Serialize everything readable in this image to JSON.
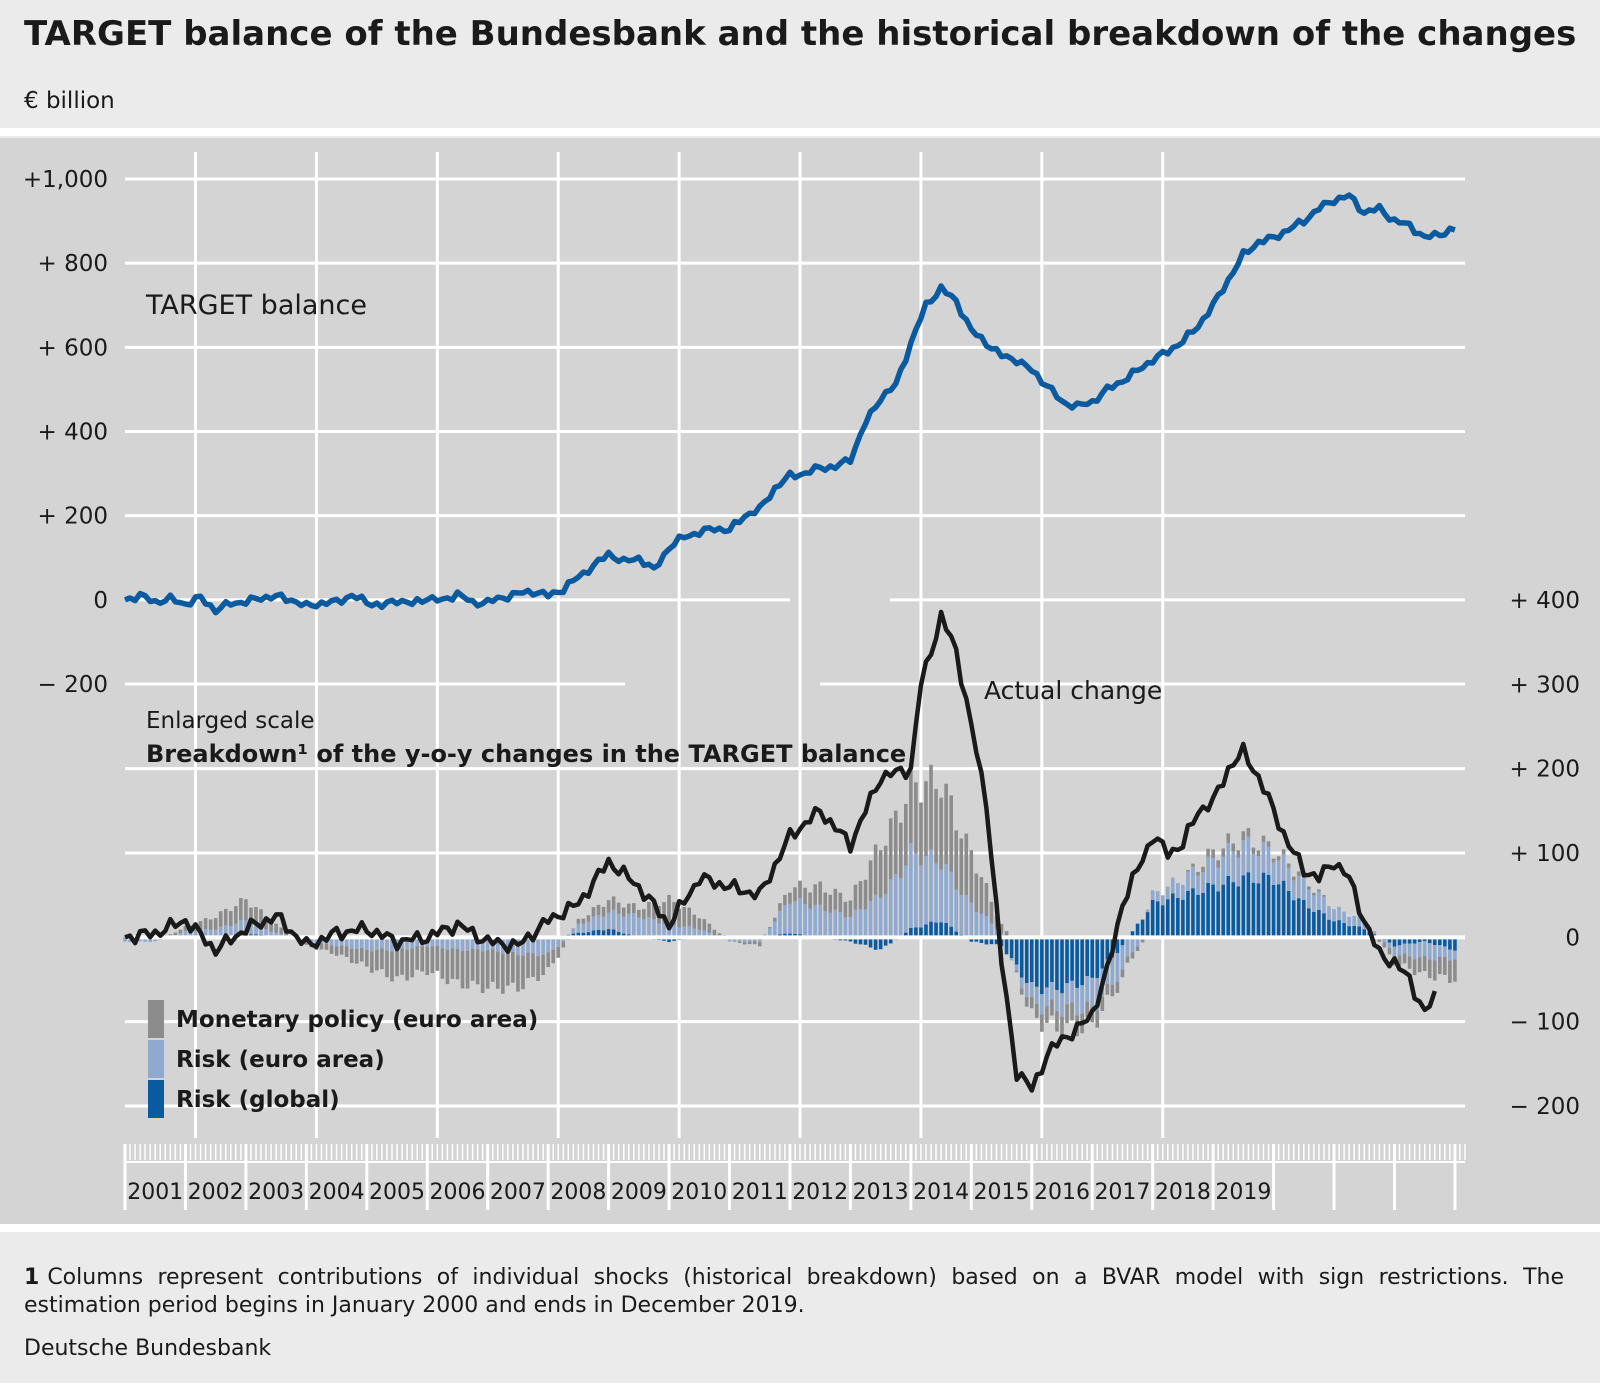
{
  "header": {
    "title": "TARGET balance of the Bundesbank and the historical breakdown of the changes",
    "unit": "€ billion"
  },
  "footer": {
    "note_number": "1",
    "note_text": "Columns represent contributions of individual shocks (historical breakdown) based on a BVAR model with sign restrictions. The estimation period begins in January 2000 and ends in December 2019.",
    "source": "Deutsche Bundesbank"
  },
  "chart_data": [
    {
      "type": "line",
      "panel": "top",
      "title": "TARGET balance",
      "ylim": [
        -200,
        1000
      ],
      "yticks": [
        "+1,000",
        "+ 800",
        "+ 600",
        "+ 400",
        "+ 200",
        "0",
        "− 200"
      ],
      "color": "#0a5aa0",
      "x_years": [
        "2001",
        "2002",
        "2003",
        "2004",
        "2005",
        "2006",
        "2007",
        "2008",
        "2009",
        "2010",
        "2011",
        "2012",
        "2013",
        "2014",
        "2015",
        "2016",
        "2017",
        "2018",
        "2019"
      ],
      "x_start": "2000-12",
      "points": [
        [
          0,
          0
        ],
        [
          3,
          10
        ],
        [
          6,
          -5
        ],
        [
          9,
          2
        ],
        [
          12,
          -10
        ],
        [
          15,
          5
        ],
        [
          18,
          -25
        ],
        [
          21,
          -8
        ],
        [
          24,
          -5
        ],
        [
          27,
          5
        ],
        [
          30,
          8
        ],
        [
          33,
          0
        ],
        [
          36,
          -15
        ],
        [
          39,
          -8
        ],
        [
          42,
          -5
        ],
        [
          45,
          10
        ],
        [
          48,
          -5
        ],
        [
          51,
          -15
        ],
        [
          54,
          0
        ],
        [
          57,
          -10
        ],
        [
          60,
          5
        ],
        [
          63,
          -3
        ],
        [
          66,
          15
        ],
        [
          69,
          -8
        ],
        [
          72,
          -5
        ],
        [
          75,
          5
        ],
        [
          78,
          15
        ],
        [
          81,
          20
        ],
        [
          84,
          10
        ],
        [
          87,
          25
        ],
        [
          90,
          55
        ],
        [
          93,
          80
        ],
        [
          96,
          110
        ],
        [
          99,
          90
        ],
        [
          102,
          100
        ],
        [
          105,
          70
        ],
        [
          108,
          125
        ],
        [
          111,
          150
        ],
        [
          114,
          160
        ],
        [
          117,
          170
        ],
        [
          120,
          165
        ],
        [
          123,
          200
        ],
        [
          126,
          215
        ],
        [
          129,
          265
        ],
        [
          132,
          295
        ],
        [
          135,
          300
        ],
        [
          138,
          315
        ],
        [
          141,
          315
        ],
        [
          144,
          335
        ],
        [
          147,
          420
        ],
        [
          150,
          480
        ],
        [
          153,
          510
        ],
        [
          156,
          610
        ],
        [
          159,
          700
        ],
        [
          162,
          740
        ],
        [
          165,
          710
        ],
        [
          168,
          640
        ],
        [
          171,
          610
        ],
        [
          174,
          580
        ],
        [
          177,
          570
        ],
        [
          180,
          545
        ],
        [
          183,
          510
        ],
        [
          186,
          470
        ],
        [
          189,
          460
        ],
        [
          192,
          470
        ],
        [
          195,
          500
        ],
        [
          198,
          520
        ],
        [
          201,
          545
        ],
        [
          204,
          570
        ],
        [
          207,
          590
        ],
        [
          210,
          615
        ],
        [
          213,
          650
        ],
        [
          216,
          700
        ],
        [
          219,
          760
        ],
        [
          222,
          820
        ],
        [
          225,
          850
        ],
        [
          228,
          860
        ],
        [
          231,
          880
        ],
        [
          234,
          900
        ],
        [
          237,
          930
        ],
        [
          240,
          950
        ],
        [
          243,
          960
        ],
        [
          246,
          920
        ],
        [
          249,
          930
        ],
        [
          252,
          900
        ],
        [
          255,
          890
        ],
        [
          258,
          860
        ],
        [
          261,
          870
        ],
        [
          264,
          880
        ]
      ],
      "series_points_note": "",
      "label": "TARGET balance"
    },
    {
      "type": "bar+line",
      "panel": "bottom",
      "title": "Breakdown¹ of the y-o-y changes in the TARGET balance",
      "subtitle": "Enlarged scale",
      "ylim": [
        -200,
        400
      ],
      "yticks": [
        "+ 400",
        "+ 300",
        "+ 200",
        "+ 100",
        "0",
        "− 100",
        "− 200"
      ],
      "legend_placement": "bottom-left",
      "series": [
        {
          "name": "Monetary policy (euro area)",
          "color": "#8c8c8c"
        },
        {
          "name": "Risk (euro area)",
          "color": "#8fa9cf"
        },
        {
          "name": "Risk (global)",
          "color": "#0a5aa0"
        }
      ],
      "line_label": "Actual change",
      "line_color": "#1a1a1a",
      "contributions": [
        [
          0,
          0,
          -5,
          0
        ],
        [
          6,
          0,
          -5,
          0
        ],
        [
          12,
          5,
          5,
          2
        ],
        [
          18,
          15,
          10,
          0
        ],
        [
          24,
          25,
          15,
          5
        ],
        [
          30,
          10,
          5,
          0
        ],
        [
          36,
          -5,
          -5,
          0
        ],
        [
          42,
          -10,
          -10,
          0
        ],
        [
          48,
          -20,
          -15,
          0
        ],
        [
          54,
          -35,
          -15,
          0
        ],
        [
          60,
          -30,
          -10,
          0
        ],
        [
          66,
          -40,
          -15,
          0
        ],
        [
          72,
          -45,
          -15,
          0
        ],
        [
          78,
          -40,
          -20,
          0
        ],
        [
          84,
          -20,
          -20,
          0
        ],
        [
          90,
          5,
          10,
          5
        ],
        [
          96,
          15,
          20,
          10
        ],
        [
          102,
          10,
          25,
          0
        ],
        [
          108,
          30,
          15,
          -5
        ],
        [
          114,
          15,
          10,
          0
        ],
        [
          120,
          0,
          -5,
          0
        ],
        [
          126,
          -5,
          -5,
          0
        ],
        [
          132,
          15,
          40,
          5
        ],
        [
          138,
          25,
          35,
          0
        ],
        [
          144,
          20,
          25,
          -5
        ],
        [
          150,
          60,
          50,
          -15
        ],
        [
          156,
          80,
          90,
          10
        ],
        [
          162,
          95,
          70,
          20
        ],
        [
          168,
          60,
          40,
          -5
        ],
        [
          174,
          10,
          5,
          -10
        ],
        [
          180,
          -15,
          -20,
          -60
        ],
        [
          186,
          -25,
          -25,
          -60
        ],
        [
          192,
          -20,
          -35,
          -50
        ],
        [
          198,
          -10,
          -30,
          -10
        ],
        [
          204,
          0,
          10,
          40
        ],
        [
          210,
          0,
          20,
          50
        ],
        [
          216,
          10,
          30,
          60
        ],
        [
          222,
          10,
          40,
          70
        ],
        [
          228,
          5,
          30,
          70
        ],
        [
          234,
          5,
          25,
          40
        ],
        [
          240,
          0,
          15,
          20
        ],
        [
          246,
          0,
          10,
          10
        ],
        [
          252,
          -10,
          -10,
          -10
        ],
        [
          258,
          -20,
          -20,
          -5
        ],
        [
          264,
          -25,
          -10,
          -15
        ]
      ],
      "actual_change": [
        [
          0,
          0
        ],
        [
          6,
          5
        ],
        [
          12,
          20
        ],
        [
          18,
          -15
        ],
        [
          24,
          10
        ],
        [
          30,
          25
        ],
        [
          36,
          -10
        ],
        [
          42,
          5
        ],
        [
          48,
          10
        ],
        [
          54,
          -5
        ],
        [
          60,
          0
        ],
        [
          66,
          15
        ],
        [
          72,
          -5
        ],
        [
          78,
          -10
        ],
        [
          84,
          20
        ],
        [
          90,
          40
        ],
        [
          96,
          90
        ],
        [
          102,
          60
        ],
        [
          108,
          15
        ],
        [
          114,
          70
        ],
        [
          120,
          60
        ],
        [
          126,
          50
        ],
        [
          132,
          120
        ],
        [
          138,
          150
        ],
        [
          144,
          110
        ],
        [
          150,
          190
        ],
        [
          156,
          200
        ],
        [
          158,
          300
        ],
        [
          162,
          380
        ],
        [
          165,
          340
        ],
        [
          168,
          250
        ],
        [
          171,
          160
        ],
        [
          174,
          -30
        ],
        [
          177,
          -160
        ],
        [
          180,
          -180
        ],
        [
          183,
          -140
        ],
        [
          186,
          -120
        ],
        [
          189,
          -110
        ],
        [
          192,
          -90
        ],
        [
          195,
          -40
        ],
        [
          198,
          40
        ],
        [
          201,
          80
        ],
        [
          204,
          120
        ],
        [
          207,
          100
        ],
        [
          210,
          110
        ],
        [
          213,
          150
        ],
        [
          216,
          160
        ],
        [
          219,
          200
        ],
        [
          222,
          220
        ],
        [
          225,
          190
        ],
        [
          228,
          150
        ],
        [
          231,
          110
        ],
        [
          234,
          80
        ],
        [
          237,
          70
        ],
        [
          240,
          90
        ],
        [
          243,
          70
        ],
        [
          246,
          20
        ],
        [
          249,
          -20
        ],
        [
          252,
          -30
        ],
        [
          255,
          -50
        ],
        [
          258,
          -90
        ],
        [
          260,
          -70
        ]
      ]
    }
  ]
}
